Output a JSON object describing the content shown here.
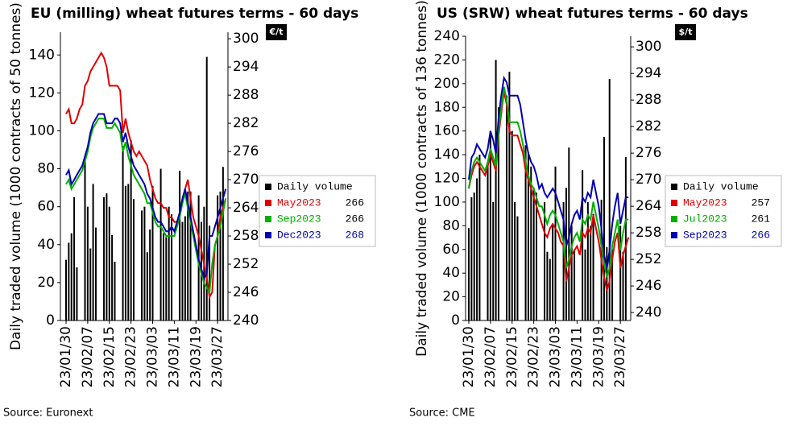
{
  "chart_data": [
    {
      "type": "combo",
      "title": "EU (milling) wheat futures terms - 60 days",
      "ylabel": "Daily traded volume (1000 contracts of 50 tonnes)",
      "y2label": "€/t",
      "source": "Source: Euronext",
      "categories": [
        "23/01/30",
        null,
        null,
        null,
        null,
        null,
        null,
        null,
        "23/02/07",
        null,
        null,
        null,
        null,
        null,
        null,
        null,
        "23/02/15",
        null,
        null,
        null,
        null,
        null,
        null,
        null,
        "23/02/23",
        null,
        null,
        null,
        null,
        null,
        null,
        null,
        "23/03/03",
        null,
        null,
        null,
        null,
        null,
        null,
        null,
        "23/03/11",
        null,
        null,
        null,
        null,
        null,
        null,
        null,
        "23/03/19",
        null,
        null,
        null,
        null,
        null,
        null,
        null,
        "23/03/27",
        null,
        null,
        null
      ],
      "ylim": [
        0,
        152
      ],
      "yticks": [
        0,
        20,
        40,
        60,
        80,
        100,
        120,
        140
      ],
      "y2lim": [
        240,
        301.4
      ],
      "y2ticks": [
        240,
        246,
        252,
        258,
        264,
        270,
        276,
        282,
        288,
        294,
        300
      ],
      "series": [
        {
          "name": "Daily volume",
          "type": "bar",
          "color": "#000000",
          "values": [
            32,
            41,
            46,
            65,
            28,
            null,
            null,
            86,
            60,
            38,
            72,
            49,
            null,
            null,
            65,
            67,
            60,
            45,
            31,
            null,
            null,
            92,
            71,
            72,
            95,
            64,
            null,
            null,
            58,
            60,
            36,
            48,
            71,
            null,
            null,
            80,
            46,
            44,
            60,
            56,
            null,
            null,
            79,
            52,
            55,
            68,
            68,
            null,
            null,
            66,
            52,
            60,
            139,
            50,
            null,
            null,
            66,
            68,
            81,
            null
          ]
        },
        {
          "name": "May2023",
          "type": "line",
          "axis": "y2",
          "color": "#e00000",
          "legend_value": 266,
          "values": [
            284,
            285,
            282,
            282,
            283,
            285,
            286,
            290,
            291,
            293,
            294,
            295,
            296,
            297,
            296,
            294,
            290,
            290,
            290,
            290,
            289,
            280,
            283,
            280,
            278,
            276,
            275,
            276,
            275,
            274,
            273,
            270,
            268,
            266,
            265,
            265,
            264,
            264,
            262,
            262,
            261,
            261,
            263,
            265,
            268,
            270,
            266,
            262,
            260,
            258,
            255,
            252,
            249,
            245,
            246,
            256,
            258,
            262,
            264,
            266
          ]
        },
        {
          "name": "Sep2023",
          "type": "line",
          "axis": "y2",
          "color": "#00b000",
          "legend_value": 266,
          "values": [
            269,
            270,
            268,
            269,
            270,
            271,
            272,
            274,
            276,
            279,
            281,
            282,
            283,
            283,
            283,
            281,
            281,
            281,
            282,
            281,
            280,
            276,
            278,
            275,
            273,
            271,
            270,
            269,
            268,
            267,
            265,
            265,
            263,
            261,
            260,
            260,
            259,
            258,
            258,
            258,
            258,
            260,
            262,
            265,
            267,
            264,
            261,
            258,
            255,
            252,
            250,
            248,
            247,
            246,
            252,
            256,
            258,
            260,
            263,
            266
          ]
        },
        {
          "name": "Dec2023",
          "type": "line",
          "axis": "y2",
          "color": "#0000b0",
          "legend_value": 268,
          "values": [
            271,
            272,
            269,
            270,
            271,
            272,
            273,
            275,
            277,
            280,
            282,
            283,
            284,
            284,
            284,
            282,
            282,
            282,
            283,
            283,
            282,
            278,
            280,
            277,
            275,
            273,
            272,
            271,
            270,
            269,
            267,
            266,
            264,
            262,
            261,
            261,
            260,
            259,
            259,
            260,
            259,
            261,
            263,
            266,
            268,
            265,
            262,
            259,
            256,
            253,
            251,
            249,
            250,
            258,
            258,
            260,
            262,
            264,
            266,
            268
          ]
        }
      ]
    },
    {
      "type": "combo",
      "title": "US (SRW) wheat futures terms - 60 days",
      "ylabel": "Daily traded volume (1000 contracts of 136 tonnes)",
      "y2label": "$/t",
      "source": "Source: CME",
      "categories": [
        "23/01/30",
        null,
        null,
        null,
        null,
        null,
        null,
        null,
        "23/02/07",
        null,
        null,
        null,
        null,
        null,
        null,
        null,
        "23/02/15",
        null,
        null,
        null,
        null,
        null,
        null,
        null,
        "23/02/23",
        null,
        null,
        null,
        null,
        null,
        null,
        null,
        "23/03/03",
        null,
        null,
        null,
        null,
        null,
        null,
        null,
        "23/03/11",
        null,
        null,
        null,
        null,
        null,
        null,
        null,
        "23/03/19",
        null,
        null,
        null,
        null,
        null,
        null,
        null,
        "23/03/27",
        null,
        null,
        null
      ],
      "ylim": [
        0,
        240
      ],
      "yticks": [
        0,
        20,
        40,
        60,
        80,
        100,
        120,
        140,
        160,
        180,
        200,
        220,
        240
      ],
      "y2lim": [
        238.2,
        302.4
      ],
      "y2ticks": [
        240,
        246,
        252,
        258,
        264,
        270,
        276,
        282,
        288,
        294,
        300
      ],
      "series": [
        {
          "name": "Daily volume",
          "type": "bar",
          "color": "#000000",
          "values": [
            78,
            104,
            108,
            120,
            140,
            null,
            null,
            130,
            160,
            100,
            220,
            180,
            null,
            null,
            190,
            210,
            160,
            100,
            88,
            null,
            null,
            148,
            142,
            130,
            112,
            108,
            null,
            null,
            100,
            58,
            52,
            80,
            130,
            null,
            null,
            100,
            112,
            146,
            80,
            60,
            null,
            null,
            127,
            60,
            100,
            80,
            90,
            null,
            null,
            102,
            155,
            62,
            204,
            60,
            null,
            null,
            80,
            58,
            138,
            null
          ]
        },
        {
          "name": "May2023",
          "type": "line",
          "axis": "y2",
          "color": "#e00000",
          "legend_value": 257,
          "values": [
            268,
            271,
            273,
            274,
            273,
            272,
            271,
            273,
            276,
            274,
            272,
            280,
            285,
            290,
            287,
            281,
            280,
            280,
            280,
            278,
            276,
            272,
            270,
            268,
            266,
            264,
            262,
            260,
            258,
            257,
            259,
            260,
            259,
            258,
            256,
            255,
            247,
            250,
            253,
            254,
            255,
            253,
            258,
            257,
            259,
            258,
            262,
            259,
            256,
            252,
            248,
            245,
            247,
            252,
            256,
            258,
            250,
            253,
            255,
            257
          ]
        },
        {
          "name": "Jul2023",
          "type": "line",
          "axis": "y2",
          "color": "#00b000",
          "legend_value": 261,
          "values": [
            268,
            272,
            274,
            275,
            274,
            273,
            272,
            274,
            277,
            275,
            273,
            281,
            286,
            291,
            288,
            283,
            283,
            283,
            283,
            281,
            278,
            274,
            271,
            269,
            268,
            266,
            264,
            264,
            262,
            260,
            262,
            263,
            262,
            260,
            258,
            256,
            250,
            252,
            255,
            257,
            258,
            256,
            261,
            260,
            262,
            261,
            265,
            262,
            259,
            255,
            251,
            248,
            250,
            255,
            258,
            261,
            254,
            258,
            261,
            261
          ]
        },
        {
          "name": "Sep2023",
          "type": "line",
          "axis": "y2",
          "color": "#0000b0",
          "legend_value": 266,
          "values": [
            270,
            275,
            276,
            278,
            277,
            276,
            275,
            277,
            281,
            279,
            276,
            284,
            289,
            293,
            292,
            289,
            289,
            289,
            289,
            287,
            283,
            279,
            276,
            274,
            273,
            271,
            268,
            269,
            267,
            266,
            267,
            268,
            267,
            265,
            263,
            261,
            255,
            257,
            260,
            262,
            263,
            261,
            266,
            265,
            267,
            266,
            270,
            267,
            264,
            259,
            253,
            250,
            254,
            260,
            264,
            267,
            260,
            263,
            266,
            266
          ]
        }
      ]
    }
  ]
}
